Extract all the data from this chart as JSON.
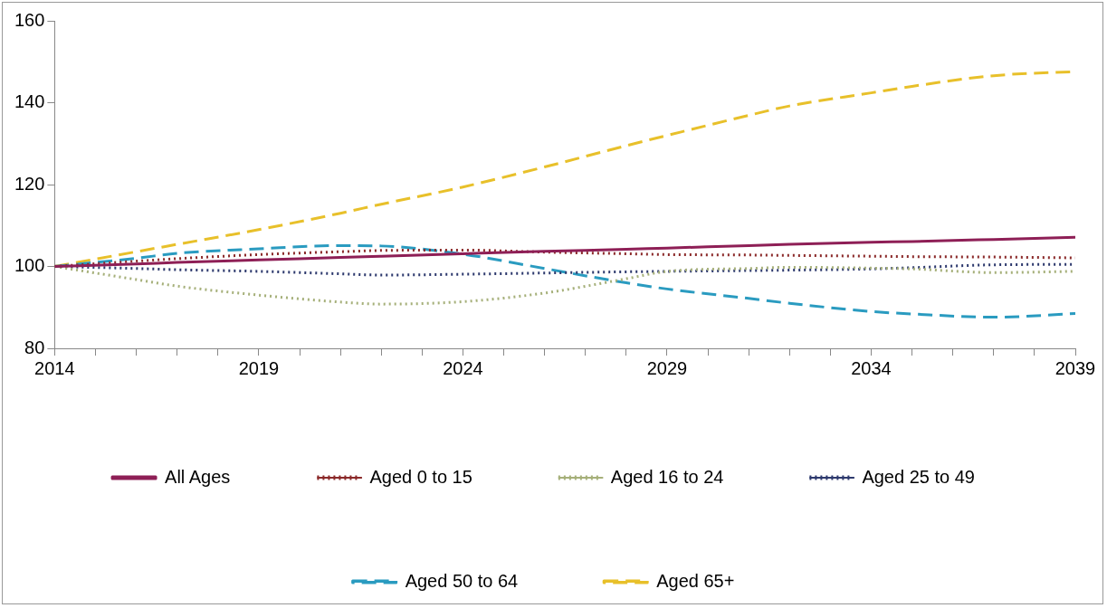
{
  "chart_data": {
    "type": "line",
    "x": [
      2014,
      2016,
      2017,
      2019,
      2021,
      2022,
      2024,
      2026,
      2028,
      2029,
      2031,
      2032,
      2034,
      2035,
      2037,
      2039
    ],
    "xlim": [
      2014,
      2039
    ],
    "xticks": [
      2014,
      {
        "value": 2015,
        "label": null
      },
      {
        "value": 2016,
        "label": null
      },
      {
        "value": 2017,
        "label": null
      },
      {
        "value": 2018,
        "label": null
      },
      2019,
      {
        "value": 2020,
        "label": null
      },
      {
        "value": 2021,
        "label": null
      },
      {
        "value": 2022,
        "label": null
      },
      {
        "value": 2023,
        "label": null
      },
      2024,
      {
        "value": 2025,
        "label": null
      },
      {
        "value": 2026,
        "label": null
      },
      {
        "value": 2027,
        "label": null
      },
      {
        "value": 2028,
        "label": null
      },
      2029,
      {
        "value": 2030,
        "label": null
      },
      {
        "value": 2031,
        "label": null
      },
      {
        "value": 2032,
        "label": null
      },
      {
        "value": 2033,
        "label": null
      },
      2034,
      {
        "value": 2035,
        "label": null
      },
      {
        "value": 2036,
        "label": null
      },
      {
        "value": 2037,
        "label": null
      },
      {
        "value": 2038,
        "label": null
      },
      2039
    ],
    "ylim": [
      80,
      160
    ],
    "yticks": [
      80,
      100,
      120,
      140,
      160
    ],
    "legend": "bottom",
    "marker": "none",
    "series": [
      {
        "name": "All Ages",
        "color": "#8e1f56",
        "line_style": "solid",
        "values": [
          100,
          100.6,
          101,
          101.6,
          102.2,
          102.5,
          103.1,
          103.7,
          104.2,
          104.5,
          105.1,
          105.4,
          105.9,
          106.1,
          106.6,
          107.1
        ]
      },
      {
        "name": "Aged 0 to 15",
        "color": "#8b2a2a",
        "line_style": "dotted",
        "values": [
          100,
          101.3,
          101.9,
          102.9,
          103.6,
          103.9,
          104,
          103.5,
          103.1,
          102.9,
          102.8,
          102.7,
          102.5,
          102.4,
          102.3,
          102.1
        ]
      },
      {
        "name": "Aged 16 to 24",
        "color": "#a6b07a",
        "line_style": "dotted",
        "values": [
          100,
          96.8,
          95.2,
          93,
          91.3,
          90.8,
          91.4,
          93.5,
          97,
          98.8,
          99.5,
          99.8,
          99.6,
          99.4,
          98.5,
          98.8
        ]
      },
      {
        "name": "Aged 25 to 49",
        "color": "#2e3a6e",
        "line_style": "dotted",
        "values": [
          100,
          99.5,
          99.2,
          98.8,
          98.2,
          97.9,
          98.1,
          98.4,
          98.7,
          98.8,
          99,
          99.1,
          99.4,
          99.7,
          100.4,
          100.5
        ]
      },
      {
        "name": "Aged 50 to 64",
        "color": "#2a9bc0",
        "line_style": "dashed",
        "values": [
          100,
          102,
          103.2,
          104.3,
          105.1,
          105,
          103,
          99.5,
          96,
          94.5,
          92.2,
          91,
          89,
          88.4,
          87.6,
          88.5
        ]
      },
      {
        "name": "Aged 65+",
        "color": "#e8c02a",
        "line_style": "dashed",
        "values": [
          100,
          103.6,
          105.4,
          109,
          113,
          115.2,
          119.4,
          124.3,
          129.5,
          132,
          136.9,
          139.2,
          142.4,
          144,
          146.6,
          147.6
        ]
      }
    ]
  }
}
